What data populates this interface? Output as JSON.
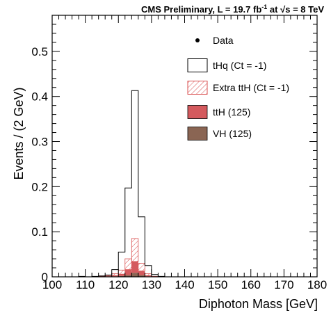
{
  "chart_data": {
    "type": "histogram",
    "header": {
      "lead": "CMS Preliminary, L = 19.7 fb",
      "sup1": "-1",
      "mid": " at ",
      "sqrt": "√",
      "tail": "s = 8 TeV"
    },
    "xlabel": "Diphoton Mass [GeV]",
    "ylabel": "Events / (2 GeV)",
    "xlim": [
      100,
      180
    ],
    "ylim": [
      0,
      0.58
    ],
    "x_ticks": [
      100,
      110,
      120,
      130,
      140,
      150,
      160,
      170,
      180
    ],
    "x_tick_labels": [
      "100",
      "110",
      "120",
      "130",
      "140",
      "150",
      "160",
      "170",
      "180"
    ],
    "y_ticks": [
      0,
      0.1,
      0.2,
      0.3,
      0.4,
      0.5
    ],
    "y_tick_labels": [
      "0",
      "0.1",
      "0.2",
      "0.3",
      "0.4",
      "0.5"
    ],
    "bin_width": 2,
    "bin_edges": [
      100,
      102,
      104,
      106,
      108,
      110,
      112,
      114,
      116,
      118,
      120,
      122,
      124,
      126,
      128,
      130,
      132,
      134,
      136,
      138,
      140,
      142,
      144,
      146,
      148,
      150,
      152,
      154,
      156,
      158,
      160,
      162,
      164,
      166,
      168,
      170,
      172,
      174,
      176,
      178,
      180
    ],
    "series": [
      {
        "name": "tHq (Ct = -1)",
        "style": "outline",
        "values": [
          0,
          0,
          0,
          0,
          0.001,
          0,
          0.001,
          0.002,
          0.004,
          0.016,
          0.055,
          0.197,
          0.413,
          0.133,
          0.025,
          0.005,
          0.001,
          0,
          0,
          0,
          0,
          0,
          0,
          0,
          0,
          0,
          0,
          0,
          0,
          0,
          0,
          0,
          0,
          0,
          0,
          0,
          0,
          0,
          0,
          0
        ]
      },
      {
        "name": "Extra ttH (Ct = -1)",
        "style": "hatched",
        "values": [
          0,
          0,
          0,
          0,
          0,
          0,
          0,
          0.001,
          0.002,
          0.004,
          0.009,
          0.024,
          0.051,
          0.017,
          0.004,
          0.001,
          0,
          0,
          0,
          0,
          0,
          0,
          0,
          0,
          0,
          0,
          0,
          0,
          0,
          0,
          0,
          0,
          0,
          0,
          0,
          0,
          0,
          0,
          0,
          0
        ]
      },
      {
        "name": "ttH (125)",
        "style": "filled",
        "values": [
          0,
          0,
          0,
          0,
          0,
          0,
          0,
          0.001,
          0.001,
          0.002,
          0.004,
          0.012,
          0.025,
          0.009,
          0.002,
          0,
          0,
          0,
          0,
          0,
          0,
          0,
          0,
          0,
          0,
          0,
          0,
          0,
          0,
          0,
          0,
          0,
          0,
          0,
          0,
          0,
          0,
          0,
          0,
          0
        ]
      },
      {
        "name": "VH (125)",
        "style": "filled",
        "values": [
          0,
          0,
          0,
          0,
          0,
          0,
          0,
          0,
          0.001,
          0.001,
          0.002,
          0.004,
          0.009,
          0.004,
          0.001,
          0,
          0,
          0,
          0,
          0,
          0,
          0,
          0,
          0,
          0,
          0,
          0,
          0,
          0,
          0,
          0,
          0,
          0,
          0,
          0,
          0,
          0,
          0,
          0,
          0
        ]
      }
    ],
    "data_marker": {
      "name": "Data",
      "points": []
    },
    "legend": {
      "placement": "top-right",
      "entries": [
        {
          "label": "Data",
          "kind": "marker"
        },
        {
          "label": "tHq (Ct = -1)",
          "kind": "outline"
        },
        {
          "label": "Extra ttH (Ct = -1)",
          "kind": "hatched"
        },
        {
          "label": "ttH (125)",
          "kind": "filled"
        },
        {
          "label": "VH (125)",
          "kind": "filled"
        }
      ]
    },
    "colors": {
      "tHq": "#000000",
      "extra_ttH": "#d94f4f",
      "ttH": "#d45a5e",
      "VH": "#8a6553",
      "frame": "#000000"
    },
    "grid": false
  }
}
